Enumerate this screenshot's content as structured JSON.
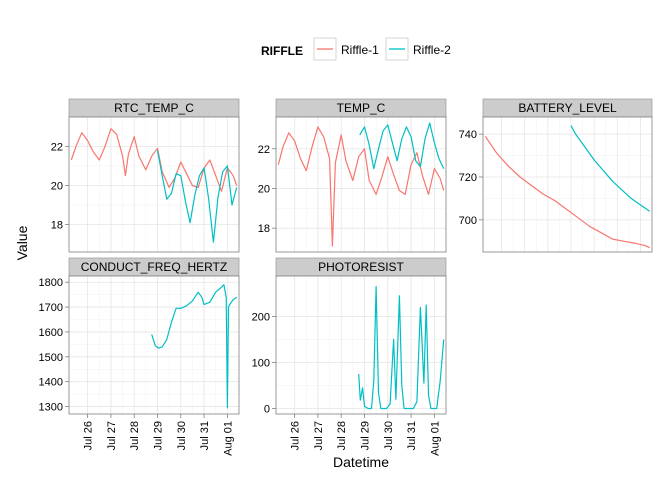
{
  "chart_data": {
    "type": "line",
    "layout": "facet_wrap",
    "xlabel": "Datetime",
    "ylabel": "Value",
    "legend": {
      "title": "RIFFLE",
      "position": "top",
      "entries": [
        {
          "name": "Riffle-1",
          "color": "#F8766D"
        },
        {
          "name": "Riffle-2",
          "color": "#00BFC4"
        }
      ]
    },
    "x_ticks": [
      "Jul 26",
      "Jul 27",
      "Jul 28",
      "Jul 29",
      "Jul 30",
      "Jul 31",
      "Aug 01"
    ],
    "x_tick_values": [
      26,
      27,
      28,
      29,
      30,
      31,
      32
    ],
    "xlim": [
      25.2,
      32.5
    ],
    "grid": true,
    "panels": [
      {
        "title": "RTC_TEMP_C",
        "ylim": [
          16.6,
          23.5
        ],
        "y_ticks": [
          18,
          20,
          22
        ],
        "series": [
          {
            "name": "Riffle-1",
            "x": [
              25.3,
              25.5,
              25.75,
              26,
              26.25,
              26.5,
              26.75,
              27,
              27.25,
              27.5,
              27.62,
              27.75,
              28,
              28.2,
              28.5,
              28.75,
              29,
              29.2,
              29.5,
              29.75,
              30,
              30.25,
              30.5,
              30.75,
              31,
              31.25,
              31.5,
              31.75,
              32,
              32.25,
              32.4
            ],
            "y": [
              21.3,
              22,
              22.7,
              22.3,
              21.7,
              21.3,
              22,
              22.9,
              22.6,
              21.5,
              20.5,
              21.6,
              22.5,
              21.5,
              20.8,
              21.5,
              21.9,
              20.7,
              19.9,
              20.4,
              21.2,
              20.6,
              20.0,
              19.9,
              20.9,
              21.3,
              20.5,
              19.7,
              20.9,
              20.5,
              20.0
            ]
          },
          {
            "name": "Riffle-2",
            "x": [
              29.0,
              29.2,
              29.4,
              29.6,
              29.8,
              30.0,
              30.2,
              30.4,
              30.6,
              30.8,
              31.0,
              31.2,
              31.4,
              31.6,
              31.8,
              32.0,
              32.2,
              32.4
            ],
            "y": [
              21.8,
              20.5,
              19.3,
              19.6,
              20.6,
              20.5,
              19.2,
              18.1,
              19.5,
              20.5,
              20.9,
              19.3,
              17.1,
              19.4,
              20.7,
              21.0,
              19.0,
              19.9
            ]
          }
        ]
      },
      {
        "title": "TEMP_C",
        "ylim": [
          16.8,
          23.6
        ],
        "y_ticks": [
          18,
          20,
          22
        ],
        "series": [
          {
            "name": "Riffle-1",
            "x": [
              25.3,
              25.5,
              25.75,
              26,
              26.25,
              26.5,
              26.75,
              27,
              27.25,
              27.5,
              27.62,
              27.75,
              28,
              28.2,
              28.5,
              28.75,
              29,
              29.2,
              29.5,
              29.75,
              30,
              30.25,
              30.5,
              30.75,
              31,
              31.25,
              31.5,
              31.75,
              32,
              32.25,
              32.4
            ],
            "y": [
              21.2,
              22.1,
              22.8,
              22.4,
              21.5,
              20.9,
              22.1,
              23.1,
              22.6,
              21.5,
              17.1,
              21.3,
              22.7,
              21.4,
              20.4,
              21.6,
              22.0,
              20.4,
              19.7,
              20.6,
              21.6,
              20.7,
              19.9,
              19.7,
              21.2,
              21.8,
              20.6,
              19.7,
              21.0,
              20.5,
              19.9
            ]
          },
          {
            "name": "Riffle-2",
            "x": [
              28.8,
              29.0,
              29.2,
              29.4,
              29.6,
              29.8,
              30.0,
              30.2,
              30.4,
              30.6,
              30.8,
              31.0,
              31.2,
              31.4,
              31.6,
              31.8,
              32.0,
              32.2,
              32.4
            ],
            "y": [
              22.7,
              23.1,
              22.2,
              21.0,
              22.0,
              22.9,
              23.2,
              22.3,
              21.4,
              22.5,
              23.1,
              22.6,
              21.4,
              21.1,
              22.5,
              23.3,
              22.3,
              21.5,
              21.0
            ]
          }
        ]
      },
      {
        "title": "BATTERY_LEVEL",
        "ylim": [
          685,
          748
        ],
        "y_ticks": [
          700,
          720,
          740
        ],
        "series": [
          {
            "name": "Riffle-1",
            "x": [
              25.3,
              25.8,
              26.3,
              26.8,
              27.3,
              27.8,
              28.3,
              28.8,
              29.3,
              29.8,
              30.3,
              30.8,
              31.3,
              31.8,
              32.2,
              32.4
            ],
            "y": [
              739,
              731,
              725,
              720,
              716,
              712,
              709,
              705,
              701,
              697,
              694,
              691,
              690,
              689,
              688,
              687
            ]
          },
          {
            "name": "Riffle-2",
            "x": [
              29.0,
              29.2,
              29.6,
              30.0,
              30.4,
              30.8,
              31.2,
              31.6,
              32.0,
              32.4
            ],
            "y": [
              744,
              740,
              734,
              728,
              723,
              718,
              714,
              710,
              707,
              704
            ]
          }
        ]
      },
      {
        "title": "CONDUCT_FREQ_HERTZ",
        "ylim": [
          1270,
          1825
        ],
        "y_ticks": [
          1300,
          1400,
          1500,
          1600,
          1700,
          1800
        ],
        "series": [
          {
            "name": "Riffle-2",
            "x": [
              28.75,
              28.9,
              29.05,
              29.2,
              29.4,
              29.6,
              29.8,
              30.0,
              30.25,
              30.5,
              30.75,
              30.9,
              31.0,
              31.25,
              31.5,
              31.75,
              31.85,
              31.95,
              32.0,
              32.05,
              32.1,
              32.25,
              32.4
            ],
            "y": [
              1590,
              1545,
              1535,
              1540,
              1570,
              1640,
              1695,
              1695,
              1705,
              1725,
              1760,
              1740,
              1710,
              1720,
              1760,
              1780,
              1790,
              1740,
              1295,
              1700,
              1710,
              1730,
              1740
            ]
          }
        ]
      },
      {
        "title": "PHOTORESIST",
        "ylim": [
          -12,
          288
        ],
        "y_ticks": [
          0,
          100,
          200
        ],
        "series": [
          {
            "name": "Riffle-2",
            "x": [
              28.75,
              28.82,
              28.92,
              29.0,
              29.15,
              29.3,
              29.4,
              29.5,
              29.6,
              29.7,
              29.8,
              29.95,
              30.1,
              30.25,
              30.35,
              30.5,
              30.6,
              30.7,
              30.8,
              30.95,
              31.1,
              31.25,
              31.4,
              31.55,
              31.65,
              31.75,
              31.85,
              32.0,
              32.1,
              32.25,
              32.4
            ],
            "y": [
              75,
              18,
              45,
              5,
              0,
              0,
              60,
              265,
              35,
              0,
              0,
              0,
              10,
              150,
              20,
              245,
              50,
              0,
              0,
              0,
              0,
              15,
              220,
              55,
              225,
              30,
              0,
              0,
              0,
              60,
              150
            ]
          }
        ]
      }
    ]
  }
}
